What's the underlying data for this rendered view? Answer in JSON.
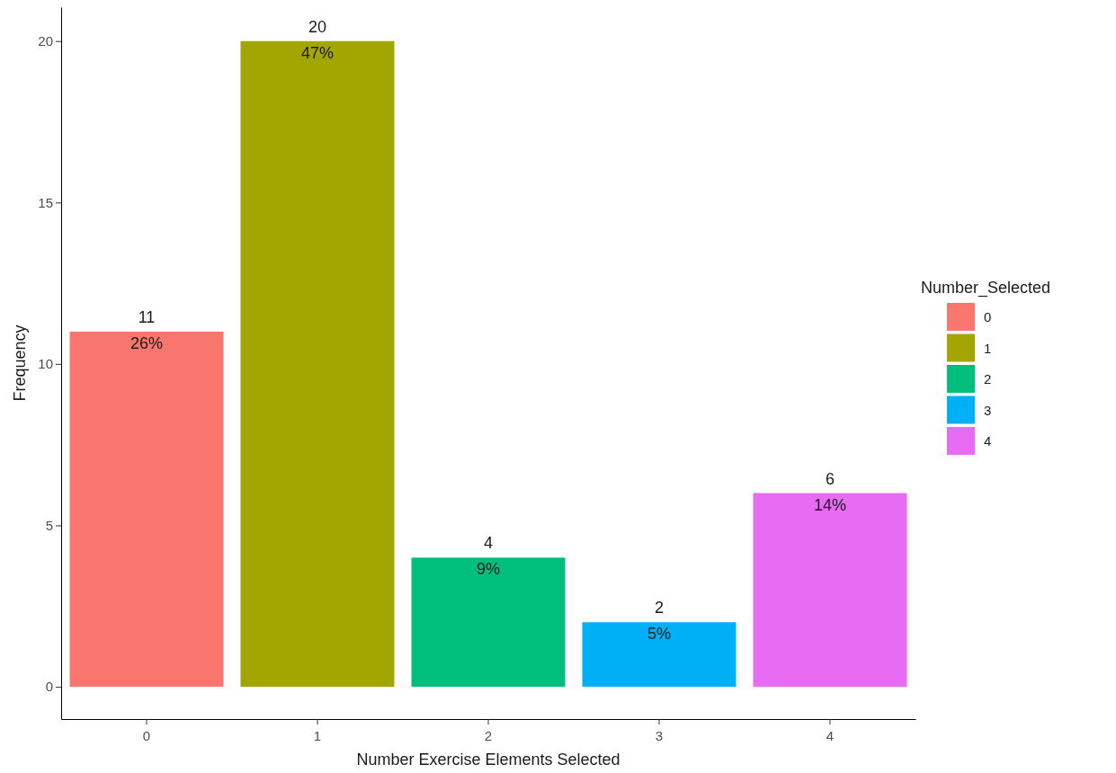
{
  "chart_data": {
    "type": "bar",
    "xlabel": "Number Exercise Elements Selected",
    "ylabel": "Frequency",
    "legend_title": "Number_Selected",
    "categories": [
      "0",
      "1",
      "2",
      "3",
      "4"
    ],
    "stacked": true,
    "series": [
      {
        "name": "0",
        "color": "#f8766d",
        "values": [
          11,
          null,
          null,
          null,
          null
        ]
      },
      {
        "name": "1",
        "color": "#a3a500",
        "values": [
          null,
          20,
          null,
          null,
          null
        ]
      },
      {
        "name": "2",
        "color": "#00bf7d",
        "values": [
          null,
          null,
          4,
          null,
          null
        ]
      },
      {
        "name": "3",
        "color": "#00b0f6",
        "values": [
          null,
          null,
          null,
          2,
          null
        ]
      },
      {
        "name": "4",
        "color": "#e76bf3",
        "values": [
          null,
          null,
          null,
          null,
          6
        ]
      }
    ],
    "ylim": [
      -1,
      21.05
    ],
    "yticks": [
      0,
      5,
      10,
      15,
      20
    ],
    "data_labels": true,
    "legend": "right",
    "annotations": [
      {
        "text": "26%",
        "x": "0",
        "y": 11
      },
      {
        "text": "47%",
        "x": "1",
        "y": 20
      },
      {
        "text": "9%",
        "x": "2",
        "y": 4
      },
      {
        "text": "5%",
        "x": "3",
        "y": 2
      },
      {
        "text": "14%",
        "x": "4",
        "y": 6
      }
    ]
  }
}
